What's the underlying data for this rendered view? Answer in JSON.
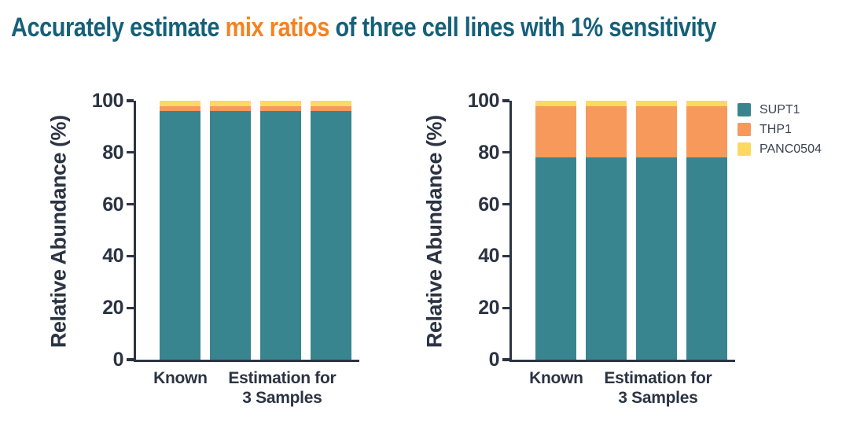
{
  "title": {
    "part1": "Accurately estimate",
    "accent": "mix ratios",
    "part3": "of three cell lines with 1% sensitivity"
  },
  "colors": {
    "title_teal": "#15607A",
    "title_orange": "#F58220",
    "axis_text": "#2C3443",
    "legend_text": "#3A4350",
    "series_teal": "#38858F",
    "series_orange": "#F6995A",
    "series_yellow": "#FCD95F"
  },
  "legend": {
    "items": [
      {
        "label": "SUPT1",
        "color": "#38858F"
      },
      {
        "label": "THP1",
        "color": "#F6995A"
      },
      {
        "label": "PANC0504",
        "color": "#FCD95F"
      }
    ]
  },
  "chart_data": [
    {
      "type": "bar",
      "subtype": "stacked",
      "title": "",
      "xlabel": "",
      "ylabel": "Relative Abundance (%)",
      "ylim": [
        0,
        100
      ],
      "yticks": [
        0,
        20,
        40,
        60,
        80,
        100
      ],
      "grid": false,
      "legend_position": "none",
      "x_group_labels": [
        {
          "text_lines": [
            "Known"
          ],
          "bar_span": [
            0,
            0
          ]
        },
        {
          "text_lines": [
            "Estimation for",
            "3 Samples"
          ],
          "bar_span": [
            1,
            3
          ]
        }
      ],
      "series": [
        {
          "name": "SUPT1",
          "color": "#38858F",
          "values": [
            96,
            96,
            96,
            96
          ]
        },
        {
          "name": "THP1",
          "color": "#F6995A",
          "values": [
            2,
            2,
            2,
            2
          ]
        },
        {
          "name": "PANC0504",
          "color": "#FCD95F",
          "values": [
            2,
            2,
            2,
            2
          ]
        }
      ]
    },
    {
      "type": "bar",
      "subtype": "stacked",
      "title": "",
      "xlabel": "",
      "ylabel": "Relative Abundance (%)",
      "ylim": [
        0,
        100
      ],
      "yticks": [
        0,
        20,
        40,
        60,
        80,
        100
      ],
      "grid": false,
      "legend_position": "right",
      "x_group_labels": [
        {
          "text_lines": [
            "Known"
          ],
          "bar_span": [
            0,
            0
          ]
        },
        {
          "text_lines": [
            "Estimation for",
            "3 Samples"
          ],
          "bar_span": [
            1,
            3
          ]
        }
      ],
      "series": [
        {
          "name": "SUPT1",
          "color": "#38858F",
          "values": [
            78,
            78,
            78,
            78
          ]
        },
        {
          "name": "THP1",
          "color": "#F6995A",
          "values": [
            20,
            20,
            20,
            20
          ]
        },
        {
          "name": "PANC0504",
          "color": "#FCD95F",
          "values": [
            2,
            2,
            2,
            2
          ]
        }
      ]
    }
  ]
}
